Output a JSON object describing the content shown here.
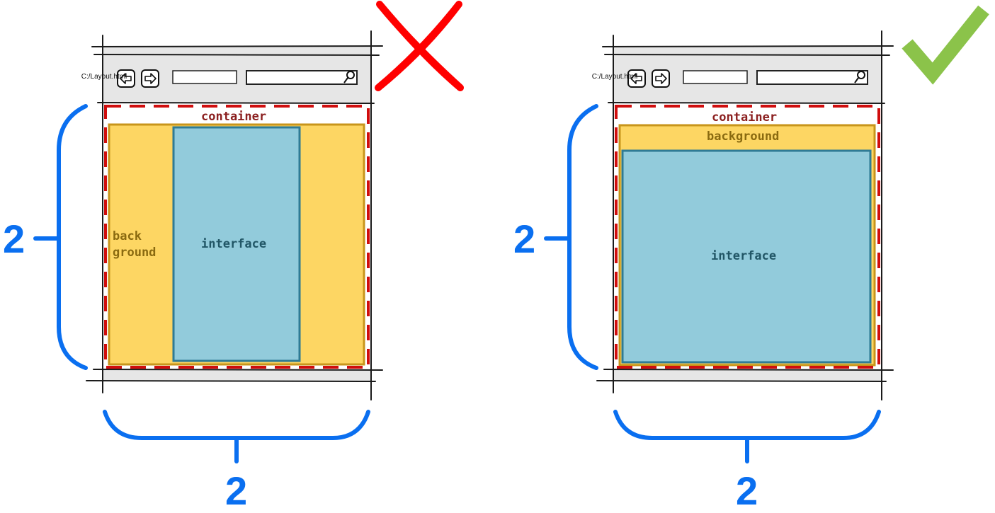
{
  "panels": [
    {
      "variant": "wrong",
      "verdict_icon": "red-x-icon",
      "url": "C:/Layout.html",
      "container_label": "container",
      "background_label_line1": "back",
      "background_label_line2": "ground",
      "interface_label": "interface",
      "height_value": "2",
      "width_value": "2"
    },
    {
      "variant": "right",
      "verdict_icon": "green-check-icon",
      "url": "C:/Layout.html",
      "container_label": "container",
      "background_label": "background",
      "interface_label": "interface",
      "height_value": "2",
      "width_value": "2"
    }
  ],
  "colors": {
    "chrome": "#e6e6e6",
    "background": "#fdd663",
    "background_border": "#c8951b",
    "interface": "#92cbdb",
    "interface_border": "#2f7b95",
    "container_dash": "#d00d0d",
    "dimension": "#0a6ff0",
    "cross": "#ff0000",
    "check": "#8bc34a"
  }
}
